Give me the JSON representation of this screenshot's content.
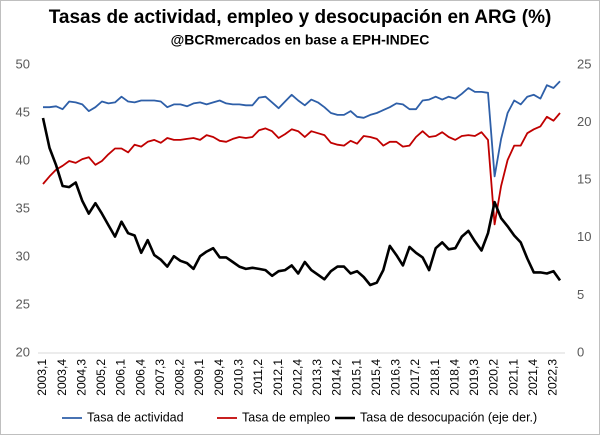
{
  "chart_data": {
    "type": "line",
    "title": "Tasas de actividad, empleo y desocupación en ARG (%)",
    "subtitle": "@BCRmercados en base a EPH-INDEC",
    "categories": [
      "2003,1",
      null,
      null,
      "2003,4",
      null,
      null,
      "2004,3",
      null,
      null,
      "2005,2",
      null,
      null,
      "2006,1",
      null,
      null,
      "2006,4",
      null,
      null,
      "2007,3",
      null,
      null,
      "2008,2",
      null,
      null,
      "2009,1",
      null,
      null,
      "2009,4",
      null,
      null,
      "2010,3",
      null,
      null,
      "2011,2",
      null,
      null,
      "2012,1",
      null,
      null,
      "2012,4",
      null,
      null,
      "2013,3",
      null,
      null,
      "2014,2",
      null,
      null,
      "2015,1",
      null,
      null,
      "2015,4",
      null,
      null,
      "2016,3",
      null,
      null,
      "2017,2",
      null,
      null,
      "2018,1",
      null,
      null,
      "2018,4",
      null,
      null,
      "2019,3",
      null,
      null,
      "2020,2",
      null,
      null,
      "2021,1",
      null,
      null,
      "2021,4",
      null,
      null,
      "2022,3",
      null
    ],
    "series": [
      {
        "name": "Tasa de actividad",
        "color": "#2e5fa8",
        "axis": "y",
        "values": [
          45.6,
          45.6,
          45.7,
          45.4,
          46.2,
          46.1,
          45.9,
          45.2,
          45.6,
          46.2,
          46.0,
          46.1,
          46.7,
          46.2,
          46.1,
          46.3,
          46.3,
          46.3,
          46.2,
          45.6,
          45.9,
          45.9,
          45.7,
          46.0,
          46.1,
          45.9,
          46.1,
          46.3,
          46.0,
          45.9,
          45.9,
          45.8,
          45.8,
          46.6,
          46.7,
          46.1,
          45.5,
          46.2,
          46.9,
          46.3,
          45.8,
          46.4,
          46.1,
          45.6,
          45.0,
          44.8,
          44.8,
          45.2,
          44.6,
          44.5,
          44.8,
          45.0,
          45.3,
          45.6,
          46.0,
          45.9,
          45.4,
          45.4,
          46.3,
          46.4,
          46.7,
          46.4,
          46.7,
          46.5,
          47.0,
          47.6,
          47.2,
          47.2,
          47.1,
          38.4,
          42.3,
          45.0,
          46.3,
          45.9,
          46.7,
          46.9,
          46.5,
          47.9,
          47.6,
          48.3
        ]
      },
      {
        "name": "Tasa de empleo",
        "color": "#c00000",
        "axis": "y",
        "values": [
          37.6,
          38.4,
          39.1,
          39.5,
          40.0,
          39.8,
          40.2,
          40.4,
          39.6,
          40.0,
          40.7,
          41.3,
          41.3,
          40.9,
          41.7,
          41.5,
          42.0,
          42.2,
          41.9,
          42.4,
          42.2,
          42.2,
          42.3,
          42.4,
          42.2,
          42.7,
          42.5,
          42.1,
          42.0,
          42.3,
          42.5,
          42.4,
          42.5,
          43.2,
          43.4,
          43.1,
          42.4,
          42.8,
          43.3,
          43.1,
          42.5,
          43.1,
          42.9,
          42.7,
          41.9,
          41.7,
          41.6,
          42.1,
          41.8,
          42.6,
          42.5,
          42.3,
          41.6,
          42.0,
          42.0,
          41.5,
          41.6,
          42.5,
          43.1,
          42.5,
          42.6,
          43.0,
          42.5,
          42.2,
          42.6,
          42.7,
          42.6,
          43.0,
          42.2,
          33.4,
          37.4,
          40.1,
          41.6,
          41.6,
          42.9,
          43.3,
          43.6,
          44.6,
          44.2,
          45.0
        ]
      },
      {
        "name": "Tasa de desocupación (eje der.)",
        "color": "#000000",
        "axis": "y2",
        "values": [
          20.4,
          17.8,
          16.3,
          14.5,
          14.4,
          14.8,
          13.2,
          12.1,
          13.0,
          12.1,
          11.1,
          10.1,
          11.4,
          10.4,
          10.2,
          8.7,
          9.8,
          8.5,
          8.1,
          7.5,
          8.4,
          8.0,
          7.8,
          7.3,
          8.4,
          8.8,
          9.1,
          8.3,
          8.3,
          7.9,
          7.5,
          7.3,
          7.4,
          7.3,
          7.2,
          6.7,
          7.1,
          7.2,
          7.6,
          6.9,
          7.9,
          7.2,
          6.8,
          6.4,
          7.1,
          7.5,
          7.5,
          6.9,
          7.1,
          6.6,
          5.9,
          6.1,
          7.2,
          9.3,
          8.5,
          7.6,
          9.2,
          8.7,
          8.3,
          7.2,
          9.1,
          9.6,
          9.0,
          9.1,
          10.1,
          10.6,
          9.7,
          8.9,
          10.4,
          13.1,
          11.7,
          11.0,
          10.2,
          9.6,
          8.2,
          7.0,
          7.0,
          6.9,
          7.1,
          6.3
        ]
      }
    ],
    "ylim": [
      20,
      50
    ],
    "yticks": [
      20,
      25,
      30,
      35,
      40,
      45,
      50
    ],
    "y2lim": [
      0,
      25
    ],
    "y2ticks": [
      0,
      5,
      10,
      15,
      20,
      25
    ],
    "grid": false,
    "legend": "bottom"
  }
}
